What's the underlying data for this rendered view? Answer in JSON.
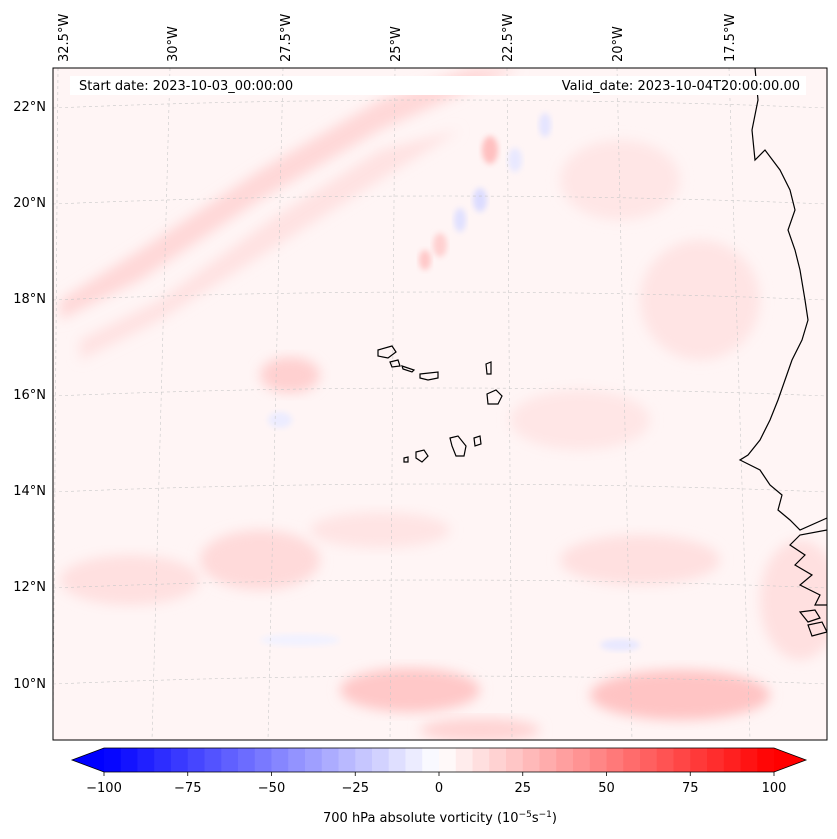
{
  "header": {
    "start_date": "Start date: 2023-10-03_00:00:00",
    "valid_date": "Valid_date: 2023-10-04T20:00:00.00"
  },
  "longitude_labels": [
    "32.5°W",
    "30°W",
    "27.5°W",
    "25°W",
    "22.5°W",
    "20°W",
    "17.5°W"
  ],
  "latitude_labels": [
    "22°N",
    "20°N",
    "18°N",
    "16°N",
    "14°N",
    "12°N",
    "10°N"
  ],
  "colorbar": {
    "min": -100,
    "max": 100,
    "ticks": [
      "−100",
      "−75",
      "−50",
      "−25",
      "0",
      "25",
      "50",
      "75",
      "100"
    ],
    "label": "700 hPa absolute vorticity (10",
    "label_exp1": "−5",
    "label_mid": "s",
    "label_exp2": "−1",
    "label_end": ")",
    "colormap": "bwr"
  },
  "colors": {
    "negative": "#0000ff",
    "neutral": "#ffffff",
    "positive": "#ff0000",
    "coastline": "#000000",
    "grid": "#cccccc"
  }
}
